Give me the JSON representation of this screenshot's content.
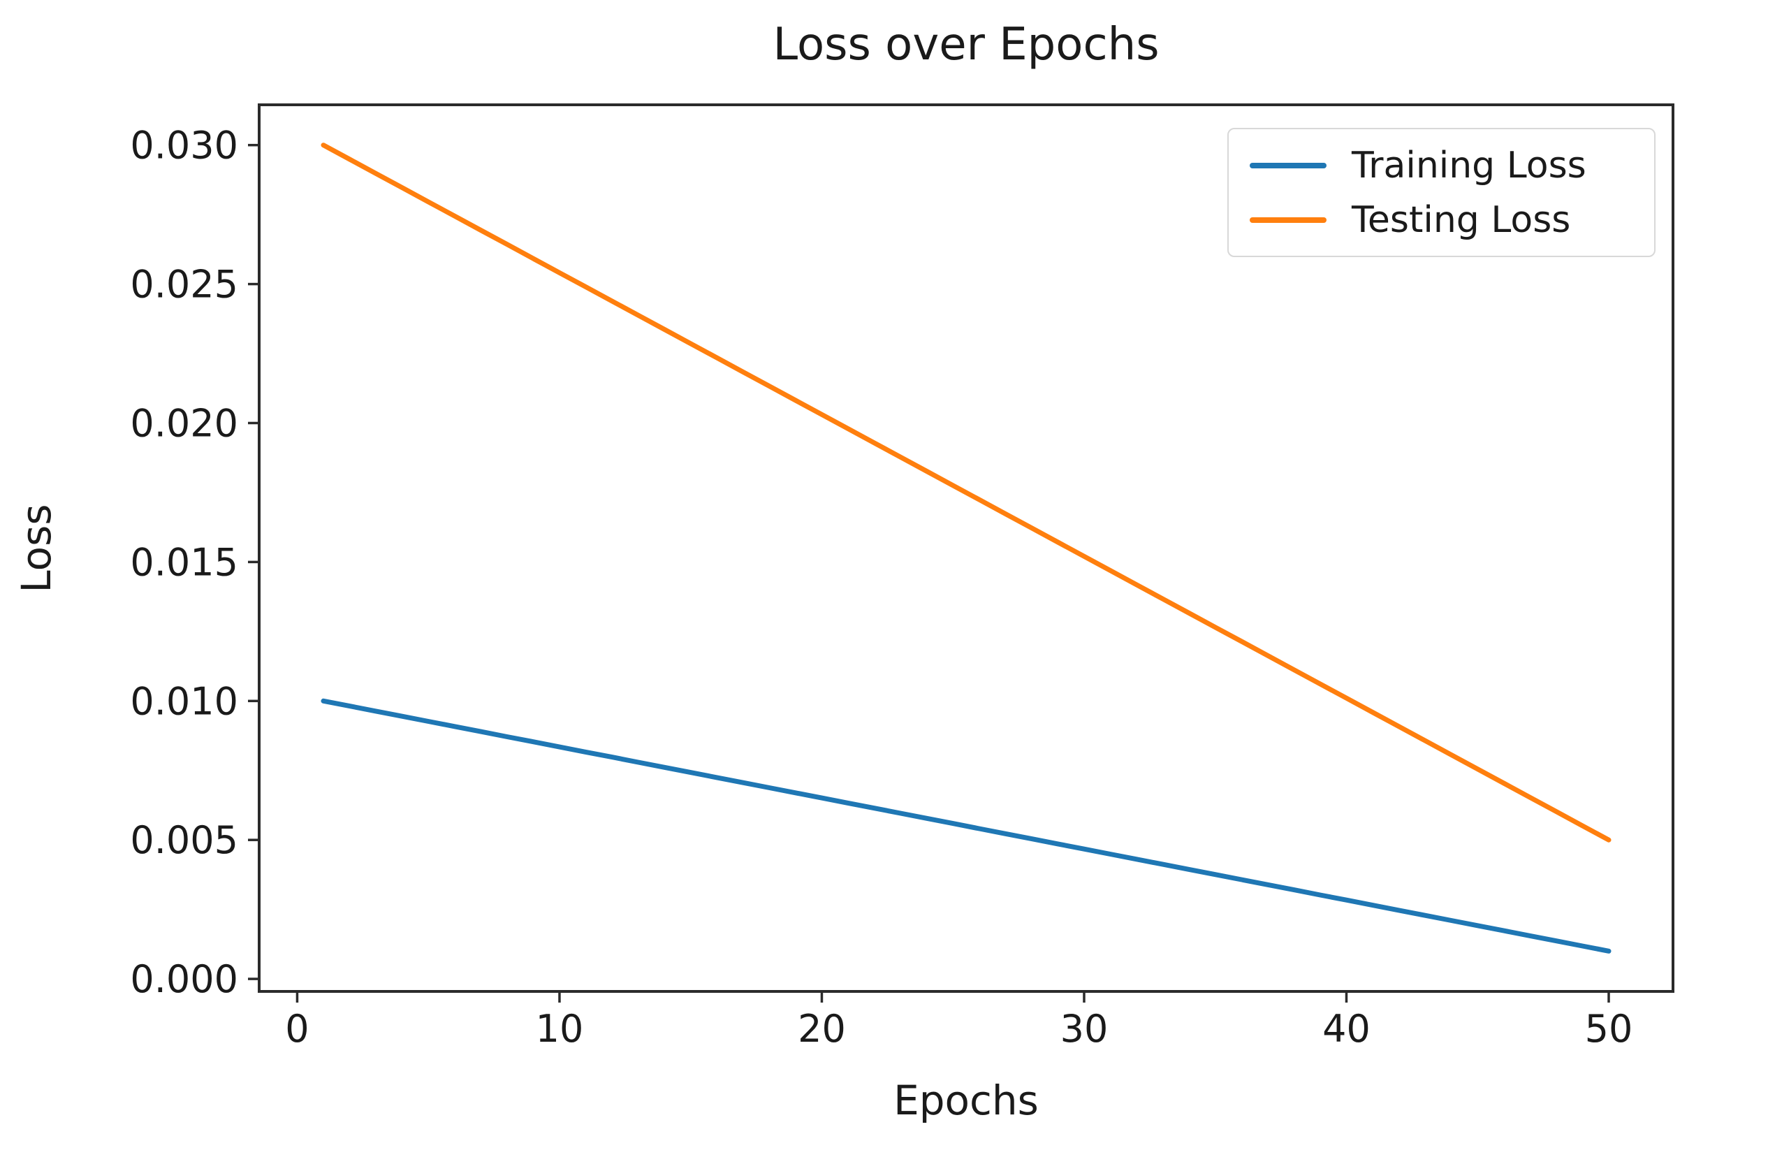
{
  "figure": {
    "background": "#ffffff",
    "text_color": "#1a1a1a",
    "spine_color": "#2b2b2b"
  },
  "chart_data": {
    "type": "line",
    "title": "Loss over Epochs",
    "xlabel": "Epochs",
    "ylabel": "Loss",
    "grid": false,
    "legend_position": "upper right",
    "xlim": [
      -1.45,
      52.45
    ],
    "ylim": [
      -0.00045,
      0.03145
    ],
    "x_tick_values": [
      0,
      10,
      20,
      30,
      40,
      50
    ],
    "x_tick_labels": [
      "0",
      "10",
      "20",
      "30",
      "40",
      "50"
    ],
    "y_tick_values": [
      0.0,
      0.005,
      0.01,
      0.015,
      0.02,
      0.025,
      0.03
    ],
    "y_tick_labels": [
      "0.000",
      "0.005",
      "0.010",
      "0.015",
      "0.020",
      "0.025",
      "0.030"
    ],
    "x": [
      1,
      2,
      3,
      4,
      5,
      6,
      7,
      8,
      9,
      10,
      11,
      12,
      13,
      14,
      15,
      16,
      17,
      18,
      19,
      20,
      21,
      22,
      23,
      24,
      25,
      26,
      27,
      28,
      29,
      30,
      31,
      32,
      33,
      34,
      35,
      36,
      37,
      38,
      39,
      40,
      41,
      42,
      43,
      44,
      45,
      46,
      47,
      48,
      49,
      50
    ],
    "series": [
      {
        "name": "Training Loss",
        "color": "#1f77b4",
        "values": [
          0.01,
          0.009816,
          0.009633,
          0.009449,
          0.009265,
          0.009082,
          0.008898,
          0.008714,
          0.008531,
          0.008347,
          0.008163,
          0.00798,
          0.007796,
          0.007612,
          0.007429,
          0.007245,
          0.007061,
          0.006878,
          0.006694,
          0.00651,
          0.006327,
          0.006143,
          0.005959,
          0.005776,
          0.005592,
          0.005408,
          0.005224,
          0.005041,
          0.004857,
          0.004673,
          0.00449,
          0.004306,
          0.004122,
          0.003939,
          0.003755,
          0.003571,
          0.003388,
          0.003204,
          0.00302,
          0.002837,
          0.002653,
          0.002469,
          0.002286,
          0.002102,
          0.001918,
          0.001735,
          0.001551,
          0.001367,
          0.001184,
          0.001
        ]
      },
      {
        "name": "Testing Loss",
        "color": "#ff7f0e",
        "values": [
          0.03,
          0.02949,
          0.02898,
          0.028469,
          0.027959,
          0.027449,
          0.026939,
          0.026429,
          0.025918,
          0.025408,
          0.024898,
          0.024388,
          0.023878,
          0.023367,
          0.022857,
          0.022347,
          0.021837,
          0.021327,
          0.020816,
          0.020306,
          0.019796,
          0.019286,
          0.018776,
          0.018265,
          0.017755,
          0.017245,
          0.016735,
          0.016224,
          0.015714,
          0.015204,
          0.014694,
          0.014184,
          0.013673,
          0.013163,
          0.012653,
          0.012143,
          0.011633,
          0.011122,
          0.010612,
          0.010102,
          0.009592,
          0.009082,
          0.008571,
          0.008061,
          0.007551,
          0.007041,
          0.006531,
          0.00602,
          0.00551,
          0.005
        ]
      }
    ]
  }
}
